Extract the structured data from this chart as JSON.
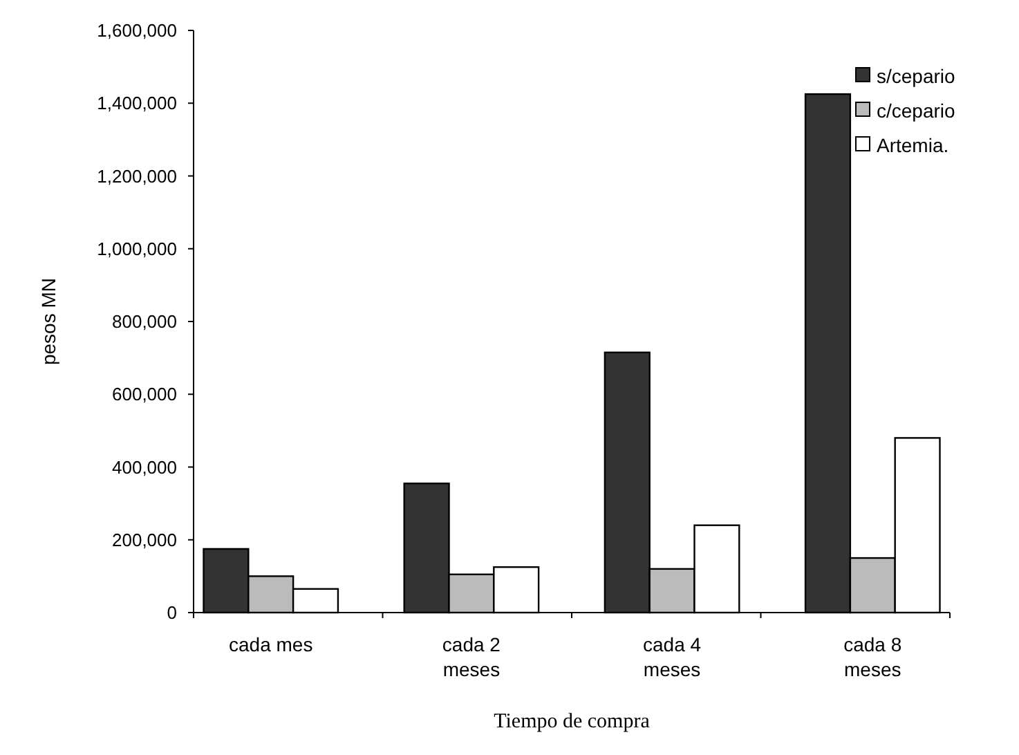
{
  "chart_data": {
    "type": "bar",
    "xlabel": "Tiempo de compra",
    "ylabel": "pesos MN",
    "categories": [
      "cada mes",
      "cada 2 meses",
      "cada 4 meses",
      "cada 8 meses"
    ],
    "series": [
      {
        "name": "s/cepario",
        "color": "#333333",
        "values": [
          175000,
          355000,
          715000,
          1425000
        ]
      },
      {
        "name": "c/cepario",
        "color": "#bbbbbb",
        "values": [
          100000,
          105000,
          120000,
          150000
        ]
      },
      {
        "name": "Artemia.",
        "color": "#ffffff",
        "values": [
          65000,
          125000,
          240000,
          480000
        ]
      }
    ],
    "ylim": [
      0,
      1600000
    ],
    "yticks": [
      {
        "value": 0,
        "label": "0"
      },
      {
        "value": 200000,
        "label": "200,000"
      },
      {
        "value": 400000,
        "label": "400,000"
      },
      {
        "value": 600000,
        "label": "600,000"
      },
      {
        "value": 800000,
        "label": "800,000"
      },
      {
        "value": 1000000,
        "label": "1,000,000"
      },
      {
        "value": 1200000,
        "label": "1,200,000"
      },
      {
        "value": 1400000,
        "label": "1,400,000"
      },
      {
        "value": 1600000,
        "label": "1,600,000"
      }
    ],
    "legend": "top right"
  }
}
